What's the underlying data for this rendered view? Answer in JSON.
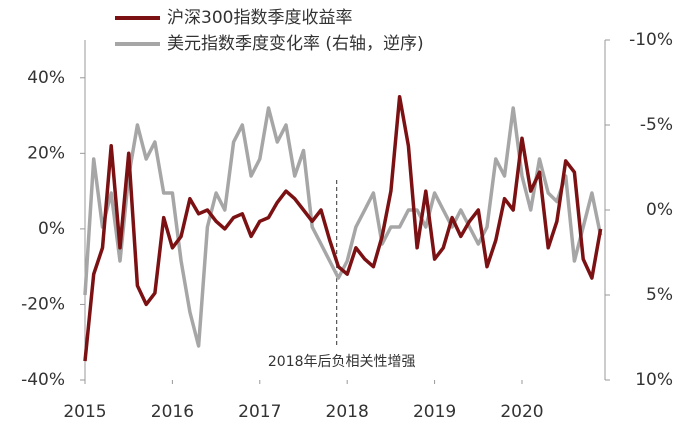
{
  "chart_data": {
    "type": "line",
    "x": [
      2015.0,
      2015.1,
      2015.2,
      2015.3,
      2015.4,
      2015.5,
      2015.6,
      2015.7,
      2015.8,
      2015.9,
      2016.0,
      2016.1,
      2016.2,
      2016.3,
      2016.4,
      2016.5,
      2016.6,
      2016.7,
      2016.8,
      2016.9,
      2017.0,
      2017.1,
      2017.2,
      2017.3,
      2017.4,
      2017.5,
      2017.6,
      2017.7,
      2017.8,
      2017.9,
      2018.0,
      2018.1,
      2018.2,
      2018.3,
      2018.4,
      2018.5,
      2018.6,
      2018.7,
      2018.8,
      2018.9,
      2019.0,
      2019.1,
      2019.2,
      2019.3,
      2019.4,
      2019.5,
      2019.6,
      2019.7,
      2019.8,
      2019.9,
      2020.0,
      2020.1,
      2020.2,
      2020.3,
      2020.4,
      2020.5,
      2020.6,
      2020.7,
      2020.8,
      2020.9
    ],
    "series": [
      {
        "name": "沪深300指数季度收益率",
        "color": "#7b1113",
        "axis": "y",
        "values": [
          -35,
          -12,
          -5,
          22,
          -5,
          20,
          -15,
          -20,
          -17,
          3,
          -5,
          -2,
          8,
          4,
          5,
          2,
          0,
          3,
          4,
          -2,
          2,
          3,
          7,
          10,
          8,
          5,
          2,
          5,
          -3,
          -10,
          -12,
          -5,
          -8,
          -10,
          -2,
          10,
          35,
          22,
          -5,
          10,
          -8,
          -5,
          3,
          -2,
          2,
          5,
          -10,
          -3,
          8,
          5,
          24,
          10,
          15,
          -5,
          2,
          18,
          15,
          -8,
          -13,
          0
        ]
      },
      {
        "name": "美元指数季度变化率 (右轴，逆序)",
        "color": "#a6a6a6",
        "axis": "y2",
        "values": [
          5,
          -3,
          1,
          -1,
          3,
          -2,
          -5,
          -3,
          -4,
          -1,
          -1,
          3,
          6,
          8,
          1,
          -1,
          0,
          -4,
          -5,
          -2,
          -3,
          -6,
          -4,
          -5,
          -2,
          -3.5,
          1,
          2,
          3,
          4,
          3,
          1,
          0,
          -1,
          2,
          1,
          1,
          0,
          0,
          1,
          -1,
          0,
          1,
          0,
          1,
          2,
          1,
          -3,
          -2,
          -6,
          -2,
          0,
          -3,
          -1,
          -0.5,
          -2,
          3,
          1,
          -1,
          1.5
        ]
      }
    ],
    "xlim": [
      2015,
      2020.95
    ],
    "xticks": [
      2015,
      2016,
      2017,
      2018,
      2019,
      2020
    ],
    "ylim": [
      -40,
      50
    ],
    "yticks": [
      {
        "value": -40,
        "label": "-40%"
      },
      {
        "value": -20,
        "label": "-20%"
      },
      {
        "value": 0,
        "label": "0%"
      },
      {
        "value": 20,
        "label": "20%"
      },
      {
        "value": 40,
        "label": "40%"
      }
    ],
    "y2lim": [
      10,
      -10
    ],
    "y2ticks": [
      {
        "value": -10,
        "label": "-10%"
      },
      {
        "value": -5,
        "label": "-5%"
      },
      {
        "value": 0,
        "label": "0%"
      },
      {
        "value": 5,
        "label": "5%"
      },
      {
        "value": 10,
        "label": "10%"
      }
    ],
    "annotation": {
      "text": "2018年后负相关性增强",
      "x": 2017.88
    }
  }
}
